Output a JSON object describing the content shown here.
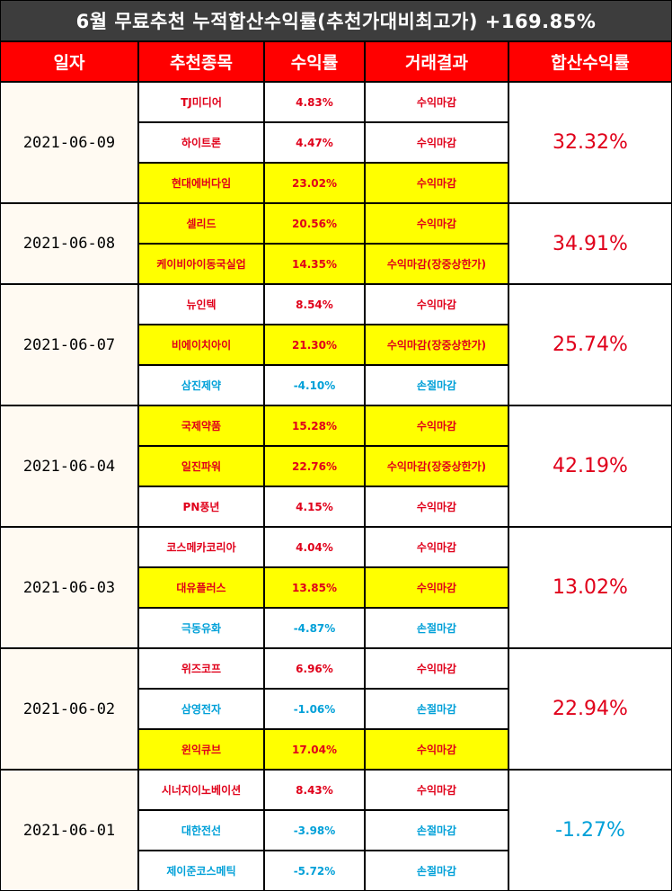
{
  "title": "6월 무료추천 누적합산수익률(추천가대비최고가) +169.85%",
  "headers": [
    "일자",
    "추천종목",
    "수익률",
    "거래결과",
    "합산수익률"
  ],
  "colors": {
    "title_bg": "#3d3d3d",
    "header_bg": "#ff0000",
    "highlight": "#ffff00",
    "gain": "#e0001a",
    "loss": "#00a0d8"
  },
  "groups": [
    {
      "date": "2021-06-09",
      "total": "32.32%",
      "total_sign": "gain",
      "rows": [
        {
          "name": "TJ미디어",
          "rate": "4.83%",
          "result": "수익마감",
          "highlight": false,
          "sign": "gain"
        },
        {
          "name": "하이트론",
          "rate": "4.47%",
          "result": "수익마감",
          "highlight": false,
          "sign": "gain"
        },
        {
          "name": "현대에버다임",
          "rate": "23.02%",
          "result": "수익마감",
          "highlight": true,
          "sign": "gain"
        }
      ]
    },
    {
      "date": "2021-06-08",
      "total": "34.91%",
      "total_sign": "gain",
      "rows": [
        {
          "name": "셀리드",
          "rate": "20.56%",
          "result": "수익마감",
          "highlight": true,
          "sign": "gain"
        },
        {
          "name": "케이비아이동국실업",
          "rate": "14.35%",
          "result": "수익마감(장중상한가)",
          "highlight": true,
          "sign": "gain"
        }
      ]
    },
    {
      "date": "2021-06-07",
      "total": "25.74%",
      "total_sign": "gain",
      "rows": [
        {
          "name": "뉴인텍",
          "rate": "8.54%",
          "result": "수익마감",
          "highlight": false,
          "sign": "gain"
        },
        {
          "name": "비에이치아이",
          "rate": "21.30%",
          "result": "수익마감(장중상한가)",
          "highlight": true,
          "sign": "gain"
        },
        {
          "name": "삼진제약",
          "rate": "-4.10%",
          "result": "손절마감",
          "highlight": false,
          "sign": "loss"
        }
      ]
    },
    {
      "date": "2021-06-04",
      "total": "42.19%",
      "total_sign": "gain",
      "rows": [
        {
          "name": "국제약품",
          "rate": "15.28%",
          "result": "수익마감",
          "highlight": true,
          "sign": "gain"
        },
        {
          "name": "일진파워",
          "rate": "22.76%",
          "result": "수익마감(장중상한가)",
          "highlight": true,
          "sign": "gain"
        },
        {
          "name": "PN풍년",
          "rate": "4.15%",
          "result": "수익마감",
          "highlight": false,
          "sign": "gain"
        }
      ]
    },
    {
      "date": "2021-06-03",
      "total": "13.02%",
      "total_sign": "gain",
      "rows": [
        {
          "name": "코스메카코리아",
          "rate": "4.04%",
          "result": "수익마감",
          "highlight": false,
          "sign": "gain"
        },
        {
          "name": "대유플러스",
          "rate": "13.85%",
          "result": "수익마감",
          "highlight": true,
          "sign": "gain"
        },
        {
          "name": "극동유화",
          "rate": "-4.87%",
          "result": "손절마감",
          "highlight": false,
          "sign": "loss"
        }
      ]
    },
    {
      "date": "2021-06-02",
      "total": "22.94%",
      "total_sign": "gain",
      "rows": [
        {
          "name": "위즈코프",
          "rate": "6.96%",
          "result": "수익마감",
          "highlight": false,
          "sign": "gain"
        },
        {
          "name": "삼영전자",
          "rate": "-1.06%",
          "result": "손절마감",
          "highlight": false,
          "sign": "loss"
        },
        {
          "name": "윈익큐브",
          "rate": "17.04%",
          "result": "수익마감",
          "highlight": true,
          "sign": "gain"
        }
      ]
    },
    {
      "date": "2021-06-01",
      "total": "-1.27%",
      "total_sign": "loss",
      "rows": [
        {
          "name": "시너지이노베이션",
          "rate": "8.43%",
          "result": "수익마감",
          "highlight": false,
          "sign": "gain"
        },
        {
          "name": "대한전선",
          "rate": "-3.98%",
          "result": "손절마감",
          "highlight": false,
          "sign": "loss"
        },
        {
          "name": "제이준코스메틱",
          "rate": "-5.72%",
          "result": "손절마감",
          "highlight": false,
          "sign": "loss"
        }
      ]
    }
  ]
}
